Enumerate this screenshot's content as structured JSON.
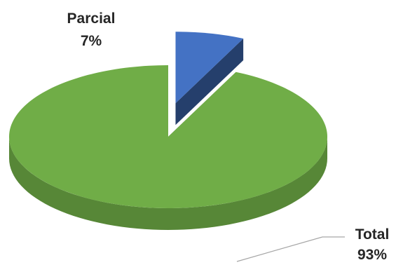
{
  "chart_data": {
    "type": "pie",
    "style": "3d-exploded",
    "slices": [
      {
        "label": "Parcial",
        "value": 7,
        "value_label": "7%",
        "color": "#4472C4"
      },
      {
        "label": "Total",
        "value": 93,
        "value_label": "93%",
        "color": "#70AD47"
      }
    ],
    "legend": "none",
    "title": ""
  }
}
